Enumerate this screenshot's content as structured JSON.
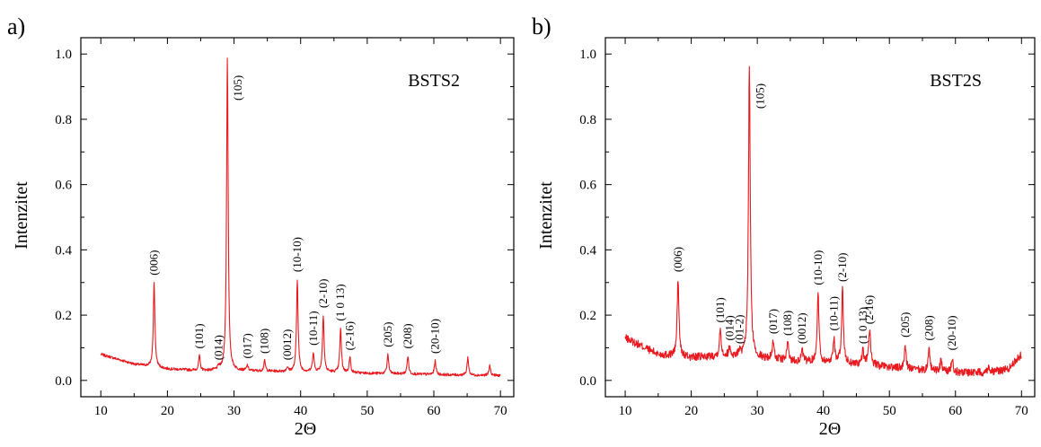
{
  "chart_data": [
    {
      "panel_label": "a)",
      "type": "line",
      "sample_label": "BSTS2",
      "xlabel": "2Θ",
      "ylabel": "Intenzitet",
      "xlim": [
        7,
        72
      ],
      "ylim": [
        -0.05,
        1.05
      ],
      "x_ticks": [
        10,
        20,
        30,
        40,
        50,
        60,
        70
      ],
      "y_ticks": [
        0.0,
        0.2,
        0.4,
        0.6,
        0.8,
        1.0
      ],
      "x_tick_labels": [
        "10",
        "20",
        "30",
        "40",
        "50",
        "60",
        "70"
      ],
      "y_tick_labels": [
        "0.0",
        "0.2",
        "0.4",
        "0.6",
        "0.8",
        "1.0"
      ],
      "grid": false,
      "color": "#e8191f",
      "baseline": {
        "x": [
          10,
          15,
          20,
          25,
          30,
          35,
          40,
          45,
          50,
          55,
          60,
          65,
          70
        ],
        "y": [
          0.08,
          0.05,
          0.035,
          0.03,
          0.03,
          0.028,
          0.027,
          0.025,
          0.022,
          0.02,
          0.018,
          0.016,
          0.015
        ]
      },
      "noise": 0.004,
      "peaks": [
        {
          "x": 18.0,
          "y": 0.3,
          "w": 0.14,
          "label": "(006)"
        },
        {
          "x": 24.8,
          "y": 0.075,
          "w": 0.14,
          "label": "(101)"
        },
        {
          "x": 27.7,
          "y": 0.04,
          "w": 0.14,
          "label": "(014)"
        },
        {
          "x": 29.0,
          "y": 0.99,
          "w": 0.14,
          "label": "(105)"
        },
        {
          "x": 32.0,
          "y": 0.045,
          "w": 0.14,
          "label": "(017)"
        },
        {
          "x": 34.6,
          "y": 0.06,
          "w": 0.14,
          "label": "(108)"
        },
        {
          "x": 38.0,
          "y": 0.04,
          "w": 0.14,
          "label": "(0012)"
        },
        {
          "x": 39.5,
          "y": 0.31,
          "w": 0.14,
          "label": "(10-10)"
        },
        {
          "x": 41.9,
          "y": 0.085,
          "w": 0.14,
          "label": "(10-11)"
        },
        {
          "x": 43.4,
          "y": 0.2,
          "w": 0.14,
          "label": "(2-10)"
        },
        {
          "x": 46.0,
          "y": 0.16,
          "w": 0.14,
          "label": "(1 0 13)"
        },
        {
          "x": 47.4,
          "y": 0.07,
          "w": 0.14,
          "label": "(2-16)"
        },
        {
          "x": 53.1,
          "y": 0.08,
          "w": 0.14,
          "label": "(205)"
        },
        {
          "x": 56.1,
          "y": 0.075,
          "w": 0.14,
          "label": "(208)"
        },
        {
          "x": 60.2,
          "y": 0.06,
          "w": 0.14,
          "label": "(20-10)"
        },
        {
          "x": 65.1,
          "y": 0.07,
          "w": 0.14,
          "label": ""
        },
        {
          "x": 68.4,
          "y": 0.045,
          "w": 0.14,
          "label": ""
        }
      ]
    },
    {
      "panel_label": "b)",
      "type": "line",
      "sample_label": "BST2S",
      "xlabel": "2Θ",
      "ylabel": "Intenzitet",
      "xlim": [
        7,
        72
      ],
      "ylim": [
        -0.05,
        1.05
      ],
      "x_ticks": [
        10,
        20,
        30,
        40,
        50,
        60,
        70
      ],
      "y_ticks": [
        0.0,
        0.2,
        0.4,
        0.6,
        0.8,
        1.0
      ],
      "x_tick_labels": [
        "10",
        "20",
        "30",
        "40",
        "50",
        "60",
        "70"
      ],
      "y_tick_labels": [
        "0.0",
        "0.2",
        "0.4",
        "0.6",
        "0.8",
        "1.0"
      ],
      "grid": false,
      "color": "#e8191f",
      "baseline": {
        "x": [
          10,
          15,
          20,
          25,
          30,
          35,
          40,
          45,
          50,
          55,
          60,
          65,
          68,
          70
        ],
        "y": [
          0.13,
          0.08,
          0.07,
          0.075,
          0.07,
          0.06,
          0.055,
          0.05,
          0.04,
          0.03,
          0.025,
          0.025,
          0.035,
          0.08
        ]
      },
      "noise": 0.012,
      "peaks": [
        {
          "x": 18.0,
          "y": 0.31,
          "w": 0.16,
          "label": "(006)"
        },
        {
          "x": 24.4,
          "y": 0.155,
          "w": 0.16,
          "label": "(101)"
        },
        {
          "x": 25.8,
          "y": 0.1,
          "w": 0.16,
          "label": "(014)"
        },
        {
          "x": 27.3,
          "y": 0.09,
          "w": 0.16,
          "label": "(01-2)"
        },
        {
          "x": 28.8,
          "y": 0.965,
          "w": 0.16,
          "label": "(105)"
        },
        {
          "x": 32.4,
          "y": 0.12,
          "w": 0.16,
          "label": "(017)"
        },
        {
          "x": 34.6,
          "y": 0.115,
          "w": 0.16,
          "label": "(108)"
        },
        {
          "x": 36.8,
          "y": 0.09,
          "w": 0.16,
          "label": "(0012)"
        },
        {
          "x": 39.2,
          "y": 0.27,
          "w": 0.16,
          "label": "(10-10)"
        },
        {
          "x": 41.6,
          "y": 0.13,
          "w": 0.16,
          "label": "(10-11)"
        },
        {
          "x": 42.9,
          "y": 0.28,
          "w": 0.16,
          "label": "(2-10)"
        },
        {
          "x": 46.0,
          "y": 0.09,
          "w": 0.16,
          "label": "(1 0 13)"
        },
        {
          "x": 47.0,
          "y": 0.15,
          "w": 0.2,
          "label": "(2-16)"
        },
        {
          "x": 52.4,
          "y": 0.11,
          "w": 0.16,
          "label": "(205)"
        },
        {
          "x": 56.0,
          "y": 0.1,
          "w": 0.16,
          "label": "(208)"
        },
        {
          "x": 57.8,
          "y": 0.06,
          "w": 0.16,
          "label": ""
        },
        {
          "x": 59.5,
          "y": 0.07,
          "w": 0.16,
          "label": "(20-10)"
        },
        {
          "x": 65.0,
          "y": 0.045,
          "w": 0.16,
          "label": ""
        }
      ]
    }
  ]
}
